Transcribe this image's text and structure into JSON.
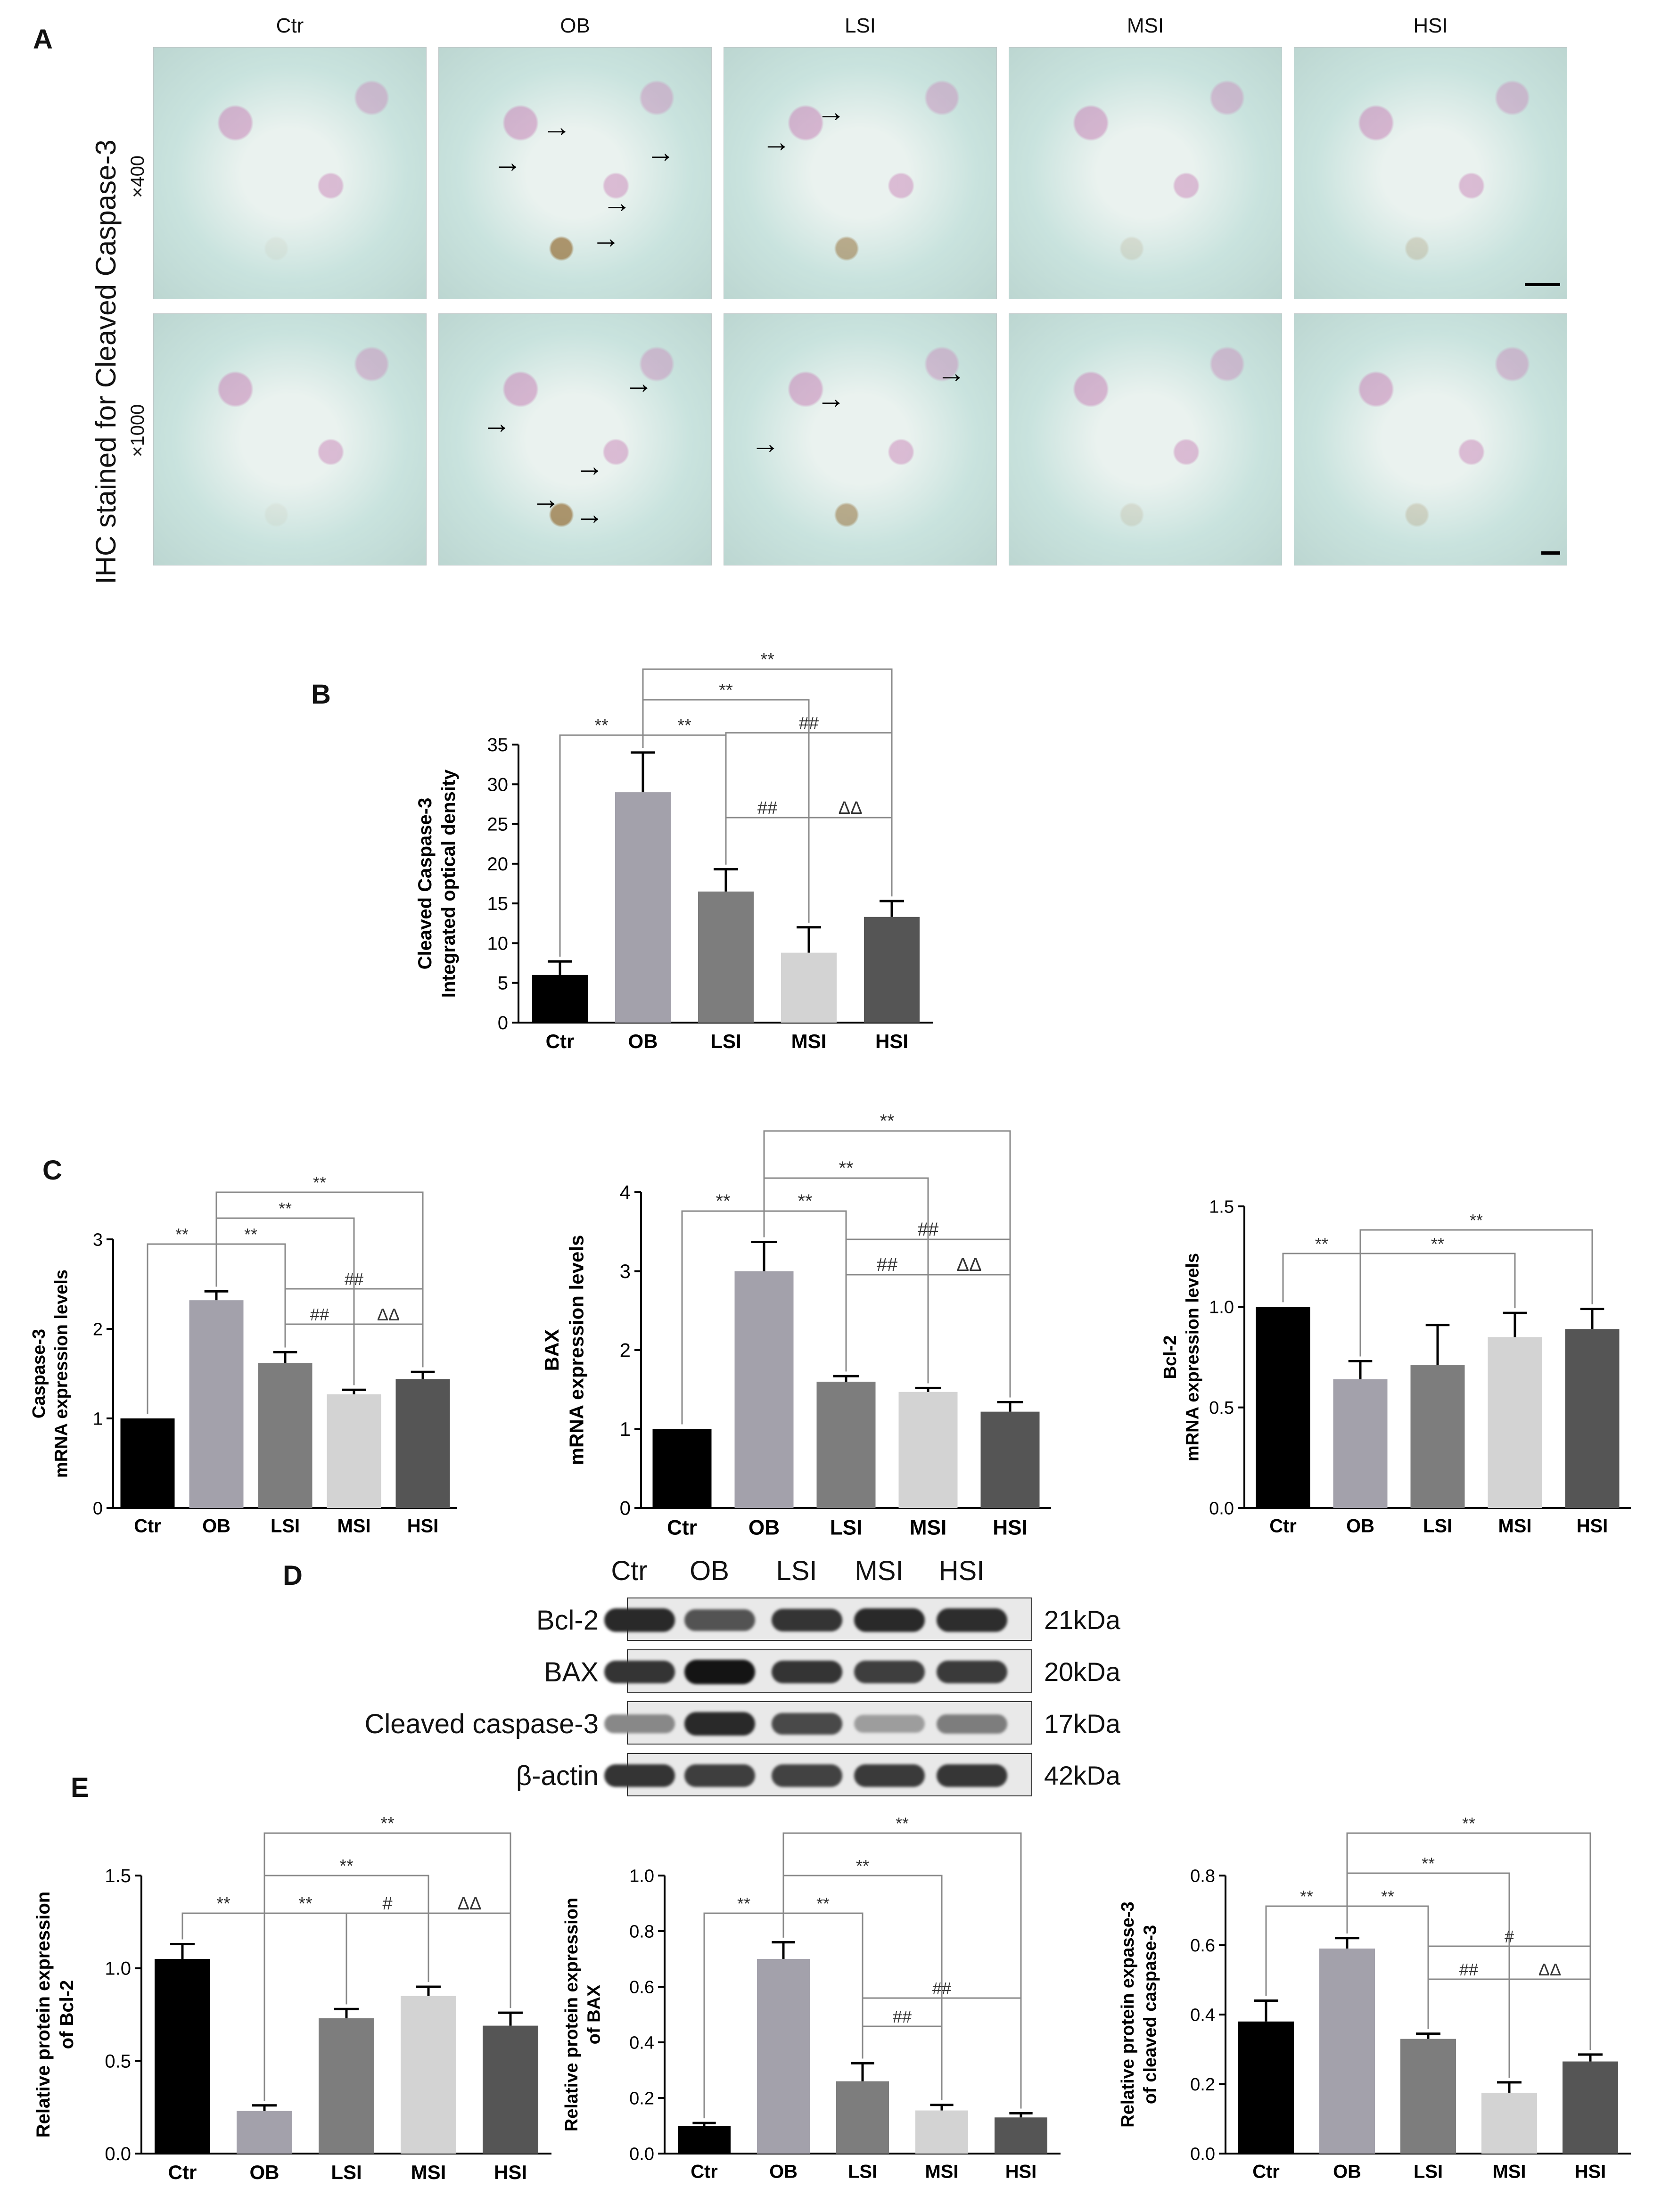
{
  "panels": {
    "A": "A",
    "B": "B",
    "C": "C",
    "D": "D",
    "E": "E"
  },
  "micrographs": {
    "stain_label": "IHC stained for Cleaved Caspase-3",
    "magnification_top": "×400",
    "magnification_bottom": "×1000",
    "columns": [
      "Ctr",
      "OB",
      "LSI",
      "MSI",
      "HSI"
    ],
    "arrow_glyph": "→",
    "colors": {
      "background": "#c9e3de",
      "cells": "#c985b8",
      "brown": "#8a5a1a"
    }
  },
  "chart_data": [
    {
      "id": "B",
      "type": "bar",
      "categories": [
        "Ctr",
        "OB",
        "LSI",
        "MSI",
        "HSI"
      ],
      "values": [
        6,
        29,
        16.5,
        8.8,
        13.3
      ],
      "errors": [
        1.7,
        5,
        2.8,
        3.2,
        2
      ],
      "ylabel_lines": [
        "Cleaved Caspase-3",
        "Integrated optical density"
      ],
      "ylim": [
        0,
        35
      ],
      "yticks": [
        0,
        5,
        10,
        15,
        20,
        25,
        30,
        35
      ],
      "significance": [
        "**",
        "**",
        "**",
        "**",
        "##",
        "##",
        "ΔΔ"
      ]
    },
    {
      "id": "C1",
      "type": "bar",
      "categories": [
        "Ctr",
        "OB",
        "LSI",
        "MSI",
        "HSI"
      ],
      "values": [
        1.0,
        2.32,
        1.62,
        1.27,
        1.44
      ],
      "errors": [
        0,
        0.1,
        0.12,
        0.05,
        0.08
      ],
      "ylabel_lines": [
        "Caspase-3",
        "mRNA expression levels"
      ],
      "ylim": [
        0,
        3
      ],
      "yticks": [
        0,
        1,
        2,
        3
      ],
      "significance": [
        "**",
        "**",
        "**",
        "**",
        "##",
        "##",
        "ΔΔ"
      ]
    },
    {
      "id": "C2",
      "type": "bar",
      "categories": [
        "Ctr",
        "OB",
        "LSI",
        "MSI",
        "HSI"
      ],
      "values": [
        1.0,
        3.0,
        1.6,
        1.47,
        1.22
      ],
      "errors": [
        0,
        0.37,
        0.07,
        0.05,
        0.12
      ],
      "ylabel_lines": [
        "BAX",
        "mRNA expression levels"
      ],
      "ylim": [
        0,
        4
      ],
      "yticks": [
        0,
        1,
        2,
        3,
        4
      ],
      "significance": [
        "**",
        "**",
        "**",
        "**",
        "##",
        "##",
        "ΔΔ"
      ]
    },
    {
      "id": "C3",
      "type": "bar",
      "categories": [
        "Ctr",
        "OB",
        "LSI",
        "MSI",
        "HSI"
      ],
      "values": [
        1.0,
        0.64,
        0.71,
        0.85,
        0.89
      ],
      "errors": [
        0,
        0.09,
        0.2,
        0.12,
        0.1
      ],
      "ylabel_lines": [
        "Bcl-2",
        "mRNA expression levels"
      ],
      "ylim": [
        0,
        1.5
      ],
      "yticks": [
        "0.0",
        "0.5",
        "1.0",
        "1.5"
      ],
      "significance": [
        "**",
        "**",
        "**"
      ]
    },
    {
      "id": "E1",
      "type": "bar",
      "categories": [
        "Ctr",
        "OB",
        "LSI",
        "MSI",
        "HSI"
      ],
      "values": [
        1.05,
        0.23,
        0.73,
        0.85,
        0.69
      ],
      "errors": [
        0.08,
        0.03,
        0.05,
        0.05,
        0.07
      ],
      "ylabel_lines": [
        "Relative protein expression",
        "of Bcl-2"
      ],
      "ylim": [
        0,
        1.5
      ],
      "yticks": [
        "0.0",
        "0.5",
        "1.0",
        "1.5"
      ],
      "significance": [
        "**",
        "**",
        "**",
        "**",
        "#",
        "ΔΔ"
      ]
    },
    {
      "id": "E2",
      "type": "bar",
      "categories": [
        "Ctr",
        "OB",
        "LSI",
        "MSI",
        "HSI"
      ],
      "values": [
        0.1,
        0.7,
        0.26,
        0.155,
        0.13
      ],
      "errors": [
        0.01,
        0.06,
        0.065,
        0.02,
        0.015
      ],
      "ylabel_lines": [
        "Relative protein expression",
        "of BAX"
      ],
      "ylim": [
        0,
        1.0
      ],
      "yticks": [
        "0.0",
        "0.2",
        "0.4",
        "0.6",
        "0.8",
        "1.0"
      ],
      "significance": [
        "**",
        "**",
        "**",
        "**",
        "##",
        "##"
      ]
    },
    {
      "id": "E3",
      "type": "bar",
      "categories": [
        "Ctr",
        "OB",
        "LSI",
        "MSI",
        "HSI"
      ],
      "values": [
        0.38,
        0.59,
        0.33,
        0.175,
        0.265
      ],
      "errors": [
        0.06,
        0.03,
        0.015,
        0.03,
        0.02
      ],
      "ylabel_lines": [
        "Relative protein expasse-3",
        "of cleaved caspase-3"
      ],
      "ylim": [
        0,
        0.8
      ],
      "yticks": [
        "0.0",
        "0.2",
        "0.4",
        "0.6",
        "0.8"
      ],
      "significance": [
        "**",
        "**",
        "**",
        "**",
        "#",
        "##",
        "ΔΔ"
      ]
    }
  ],
  "bar_colors": [
    "#000000",
    "#a3a1ab",
    "#7d7d7d",
    "#d3d3d3",
    "#555555"
  ],
  "western_blot": {
    "lanes": [
      "Ctr",
      "OB",
      "LSI",
      "MSI",
      "HSI"
    ],
    "rows": [
      {
        "label": "Bcl-2",
        "kda": "21kDa",
        "intensity": [
          0.9,
          0.7,
          0.85,
          0.9,
          0.88
        ]
      },
      {
        "label": "BAX",
        "kda": "20kDa",
        "intensity": [
          0.85,
          1.0,
          0.85,
          0.8,
          0.82
        ]
      },
      {
        "label": "Cleaved caspase-3",
        "kda": "17kDa",
        "intensity": [
          0.45,
          0.9,
          0.75,
          0.35,
          0.5
        ]
      },
      {
        "label": "β-actin",
        "kda": "42kDa",
        "intensity": [
          0.85,
          0.8,
          0.78,
          0.82,
          0.84
        ]
      }
    ]
  }
}
